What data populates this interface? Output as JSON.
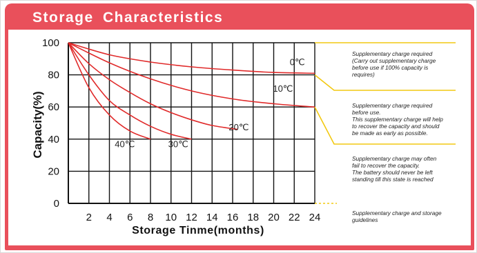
{
  "title": "Storage Characteristics",
  "colors": {
    "panel": "#e9505b",
    "curve": "#e02a2a",
    "guide": "#f2c810",
    "grid": "#111111"
  },
  "chart_data": {
    "type": "line",
    "xlabel": "Storage Tinme(months)",
    "ylabel": "Capacity(%)",
    "xlim": [
      0,
      24
    ],
    "ylim": [
      0,
      100
    ],
    "x_ticks": [
      "2",
      "4",
      "6",
      "8",
      "10",
      "12",
      "14",
      "16",
      "18",
      "20",
      "22",
      "24"
    ],
    "y_ticks": [
      "0",
      "20",
      "40",
      "60",
      "80",
      "100"
    ],
    "grid": true,
    "series": [
      {
        "name": "0℃",
        "x": [
          0,
          4,
          8,
          12,
          16,
          20,
          24
        ],
        "y": [
          100,
          92.5,
          88,
          85,
          83,
          81.5,
          81
        ]
      },
      {
        "name": "10℃",
        "x": [
          0,
          4,
          8,
          12,
          16,
          20,
          24
        ],
        "y": [
          100,
          87.5,
          77.5,
          70,
          65,
          62,
          60
        ]
      },
      {
        "name": "20℃",
        "x": [
          0,
          2,
          4,
          6,
          8,
          10,
          12,
          14,
          16.5
        ],
        "y": [
          100,
          87,
          77,
          69,
          62,
          56.5,
          52,
          48.5,
          46
        ]
      },
      {
        "name": "30℃",
        "x": [
          0,
          2,
          4,
          6,
          8,
          10,
          12
        ],
        "y": [
          100,
          80,
          64,
          55,
          48,
          43,
          40
        ]
      },
      {
        "name": "40℃",
        "x": [
          0,
          2,
          4,
          6,
          8
        ],
        "y": [
          100,
          72,
          55,
          45,
          40
        ]
      }
    ]
  },
  "notes": [
    "Supplementary charge required\n(Carry out supplementary charge\nbefore use if 100% capacity is\nrequires)",
    "Supplementary charge required\nbefore use.\nThis supplementary charge will help\nto recover the capacity and should\nbe made  as early as possible.",
    "Supplementary charge may often\nfail to recover the capacity.\nThe battery should never be left\nstanding till this state is reached",
    "Supplementary charge and storage\nguidelines"
  ]
}
